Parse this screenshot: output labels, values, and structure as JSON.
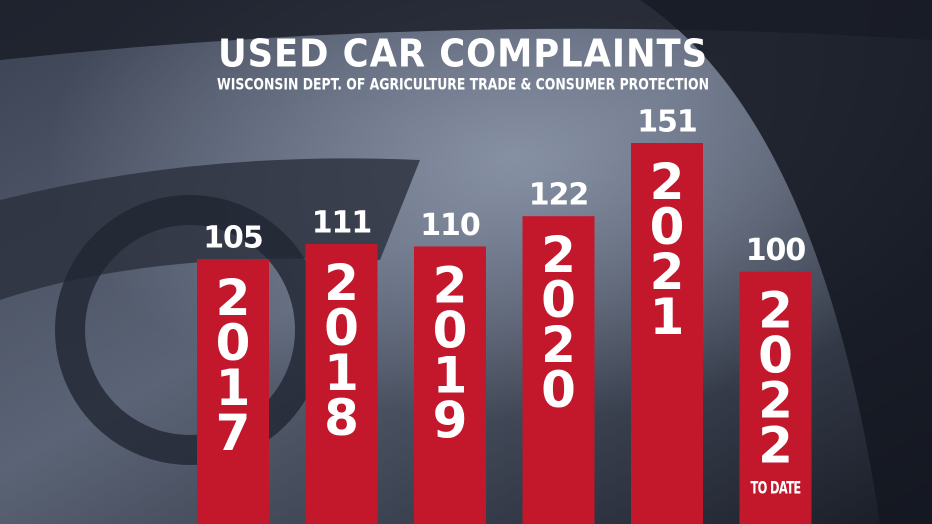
{
  "chart_data": {
    "type": "bar",
    "title": "USED CAR COMPLAINTS",
    "subtitle": "WISCONSIN DEPT. OF AGRICULTURE TRADE & CONSUMER PROTECTION",
    "categories": [
      "2017",
      "2018",
      "2019",
      "2020",
      "2021",
      "2022"
    ],
    "values": [
      105,
      111,
      110,
      122,
      151,
      100
    ],
    "color": "#c3182c",
    "annotation": "TO DATE"
  }
}
